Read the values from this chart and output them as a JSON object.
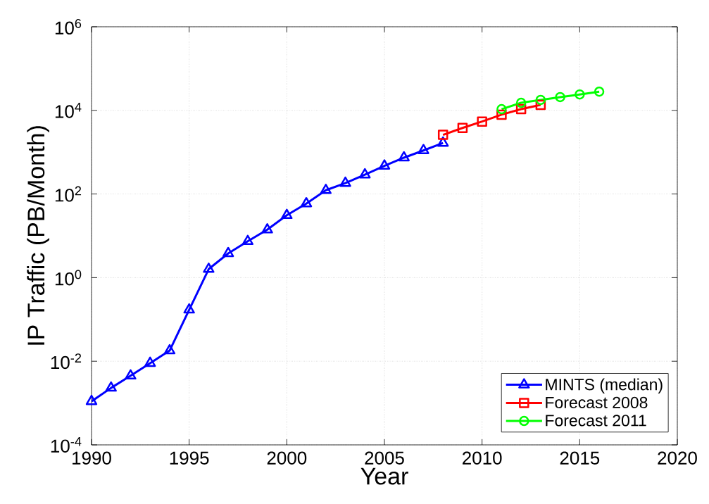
{
  "chart_data": {
    "type": "line",
    "xlabel": "Year",
    "ylabel": "IP Traffic (PB/Month)",
    "log": "y",
    "grid": true,
    "legend": "bottom right",
    "line_style": "solid",
    "xlim": [
      1990,
      2020
    ],
    "xticks": [
      1990,
      1995,
      2000,
      2005,
      2010,
      2015,
      2020
    ],
    "ylim": [
      0.0001,
      1000000
    ],
    "yticks": [
      {
        "value": 0.0001,
        "label": "10$^{-4}$"
      },
      {
        "value": 0.01,
        "label": "10$^{-2}$"
      },
      {
        "value": 1,
        "label": "10$^{0}$"
      },
      {
        "value": 100,
        "label": "10$^{2}$"
      },
      {
        "value": 10000,
        "label": "10$^{4}$"
      },
      {
        "value": 1000000,
        "label": "10$^{6}$"
      }
    ],
    "series": [
      {
        "name": "MINTS (median)",
        "color": "#0000ff",
        "marker": "triangle",
        "x": [
          1990,
          1991,
          1992,
          1993,
          1994,
          1995,
          1996,
          1997,
          1998,
          1999,
          2000,
          2001,
          2002,
          2003,
          2004,
          2005,
          2006,
          2007,
          2008
        ],
        "values": [
          0.0011,
          0.0023,
          0.0045,
          0.009,
          0.018,
          0.17,
          1.6,
          3.8,
          7.4,
          14,
          31,
          59,
          123,
          182,
          290,
          470,
          740,
          1100,
          1660
        ]
      },
      {
        "name": "Forecast 2008",
        "color": "#ff0000",
        "marker": "square",
        "x": [
          2008,
          2009,
          2010,
          2011,
          2012,
          2013
        ],
        "values": [
          2600,
          3800,
          5400,
          7900,
          10700,
          13500
        ]
      },
      {
        "name": "Forecast 2011",
        "color": "#00ff00",
        "marker": "circle",
        "x": [
          2011,
          2012,
          2013,
          2014,
          2015,
          2016
        ],
        "values": [
          10700,
          15200,
          17800,
          20800,
          24000,
          28000
        ]
      }
    ]
  }
}
